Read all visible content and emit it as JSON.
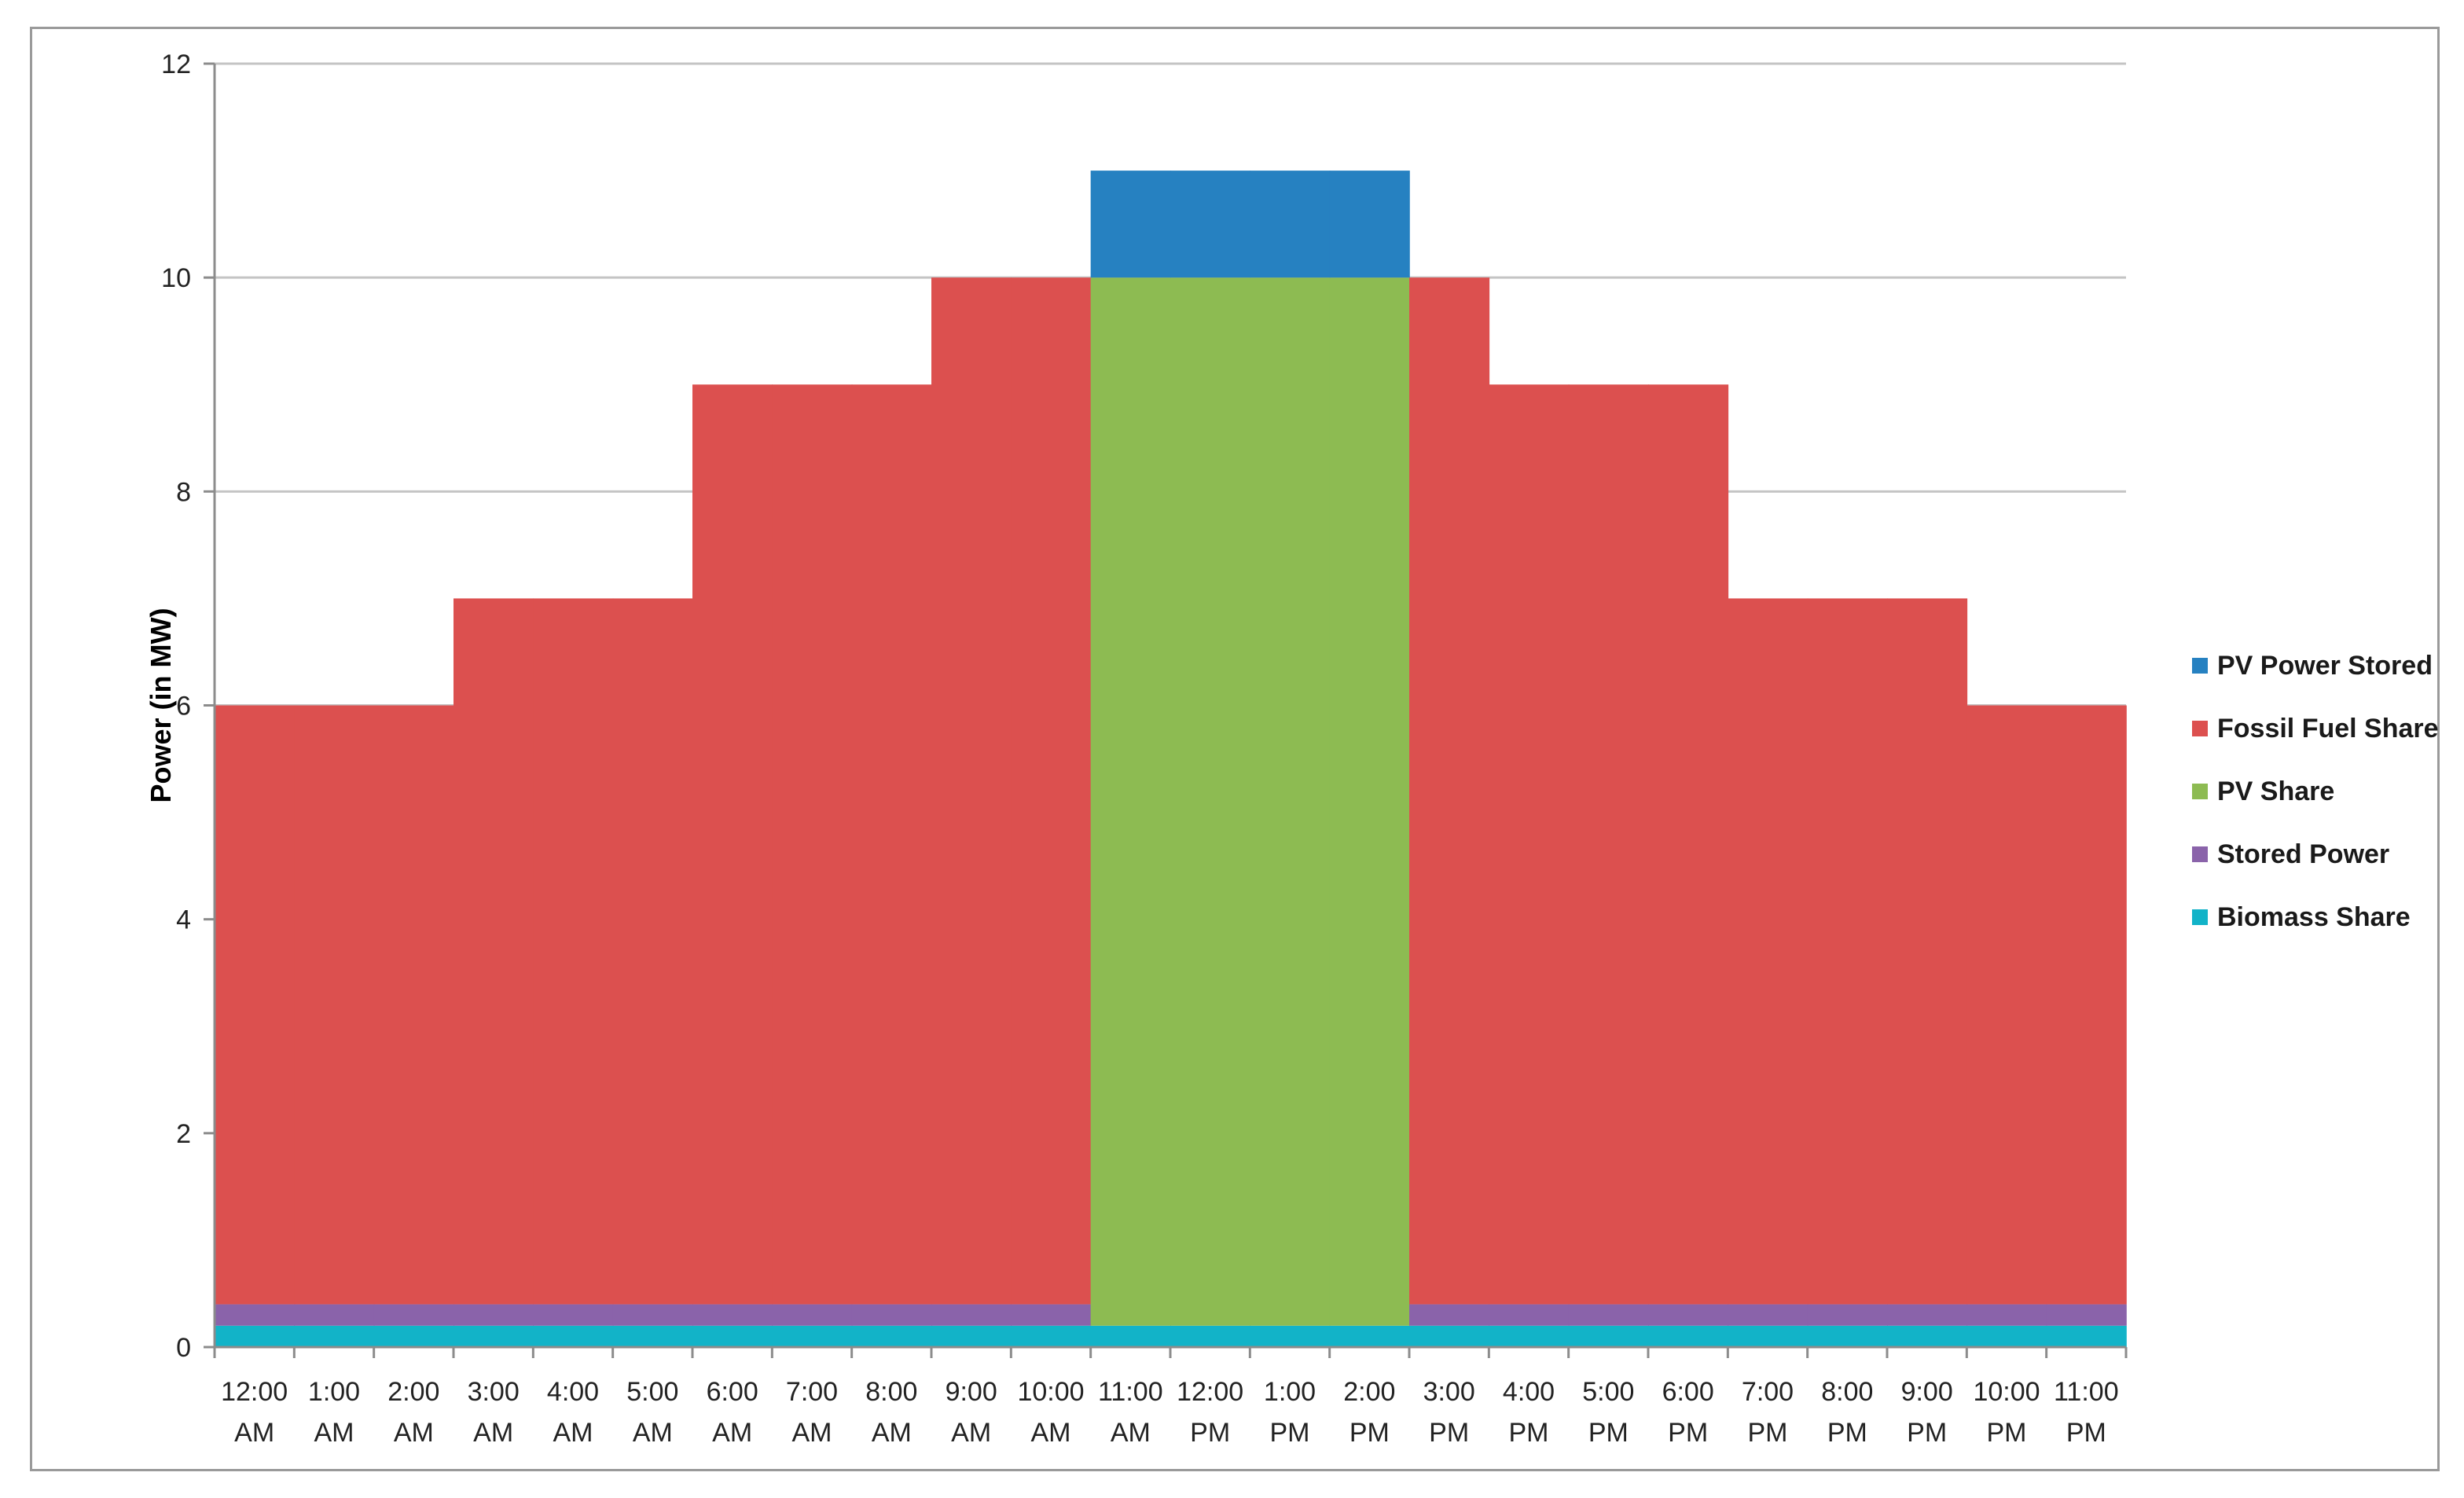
{
  "chart_data": {
    "type": "area",
    "stacked": true,
    "step": true,
    "title": "",
    "xlabel": "",
    "ylabel": "Power (in MW)",
    "ylim": [
      0,
      12
    ],
    "yticks": [
      0,
      2,
      4,
      6,
      8,
      10,
      12
    ],
    "grid": true,
    "legend_position": "right",
    "categories": [
      [
        "12:00",
        "AM"
      ],
      [
        "1:00",
        "AM"
      ],
      [
        "2:00",
        "AM"
      ],
      [
        "3:00",
        "AM"
      ],
      [
        "4:00",
        "AM"
      ],
      [
        "5:00",
        "AM"
      ],
      [
        "6:00",
        "AM"
      ],
      [
        "7:00",
        "AM"
      ],
      [
        "8:00",
        "AM"
      ],
      [
        "9:00",
        "AM"
      ],
      [
        "10:00",
        "AM"
      ],
      [
        "11:00",
        "AM"
      ],
      [
        "12:00",
        "PM"
      ],
      [
        "1:00",
        "PM"
      ],
      [
        "2:00",
        "PM"
      ],
      [
        "3:00",
        "PM"
      ],
      [
        "4:00",
        "PM"
      ],
      [
        "5:00",
        "PM"
      ],
      [
        "6:00",
        "PM"
      ],
      [
        "7:00",
        "PM"
      ],
      [
        "8:00",
        "PM"
      ],
      [
        "9:00",
        "PM"
      ],
      [
        "10:00",
        "PM"
      ],
      [
        "11:00",
        "PM"
      ]
    ],
    "series": [
      {
        "name": "Biomass Share",
        "color": "#12b3c8",
        "values": [
          0.2,
          0.2,
          0.2,
          0.2,
          0.2,
          0.2,
          0.2,
          0.2,
          0.2,
          0.2,
          0.2,
          0.2,
          0.2,
          0.2,
          0.2,
          0.2,
          0.2,
          0.2,
          0.2,
          0.2,
          0.2,
          0.2,
          0.2,
          0.2
        ]
      },
      {
        "name": "Stored Power",
        "color": "#8a63aa",
        "values": [
          0.2,
          0.2,
          0.2,
          0.2,
          0.2,
          0.2,
          0.2,
          0.2,
          0.2,
          0.2,
          0.2,
          0,
          0,
          0,
          0,
          0.2,
          0.2,
          0.2,
          0.2,
          0.2,
          0.2,
          0.2,
          0.2,
          0.2
        ]
      },
      {
        "name": "PV Share",
        "color": "#8dbb52",
        "values": [
          0,
          0,
          0,
          0,
          0,
          0,
          0,
          0,
          0,
          0,
          0,
          9.8,
          9.8,
          9.8,
          9.8,
          0,
          0,
          0,
          0,
          0,
          0,
          0,
          0,
          0
        ]
      },
      {
        "name": "Fossil Fuel Share",
        "color": "#dc504f",
        "values": [
          5.6,
          5.6,
          5.6,
          6.6,
          6.6,
          6.6,
          8.6,
          8.6,
          8.6,
          9.6,
          9.6,
          0,
          0,
          0,
          0,
          9.6,
          8.6,
          8.6,
          8.6,
          6.6,
          6.6,
          6.6,
          5.6,
          5.6
        ]
      },
      {
        "name": "PV Power Stored",
        "color": "#2681c1",
        "values": [
          0,
          0,
          0,
          0,
          0,
          0,
          0,
          0,
          0,
          0,
          0,
          1,
          1,
          1,
          1,
          0,
          0,
          0,
          0,
          0,
          0,
          0,
          0,
          0
        ]
      }
    ],
    "legend_order": [
      "PV Power Stored",
      "Fossil Fuel Share",
      "PV Share",
      "Stored Power",
      "Biomass Share"
    ],
    "colors": {
      "grid": "#c4c4c4",
      "axis": "#8c8c8c",
      "text": "#222222"
    }
  }
}
